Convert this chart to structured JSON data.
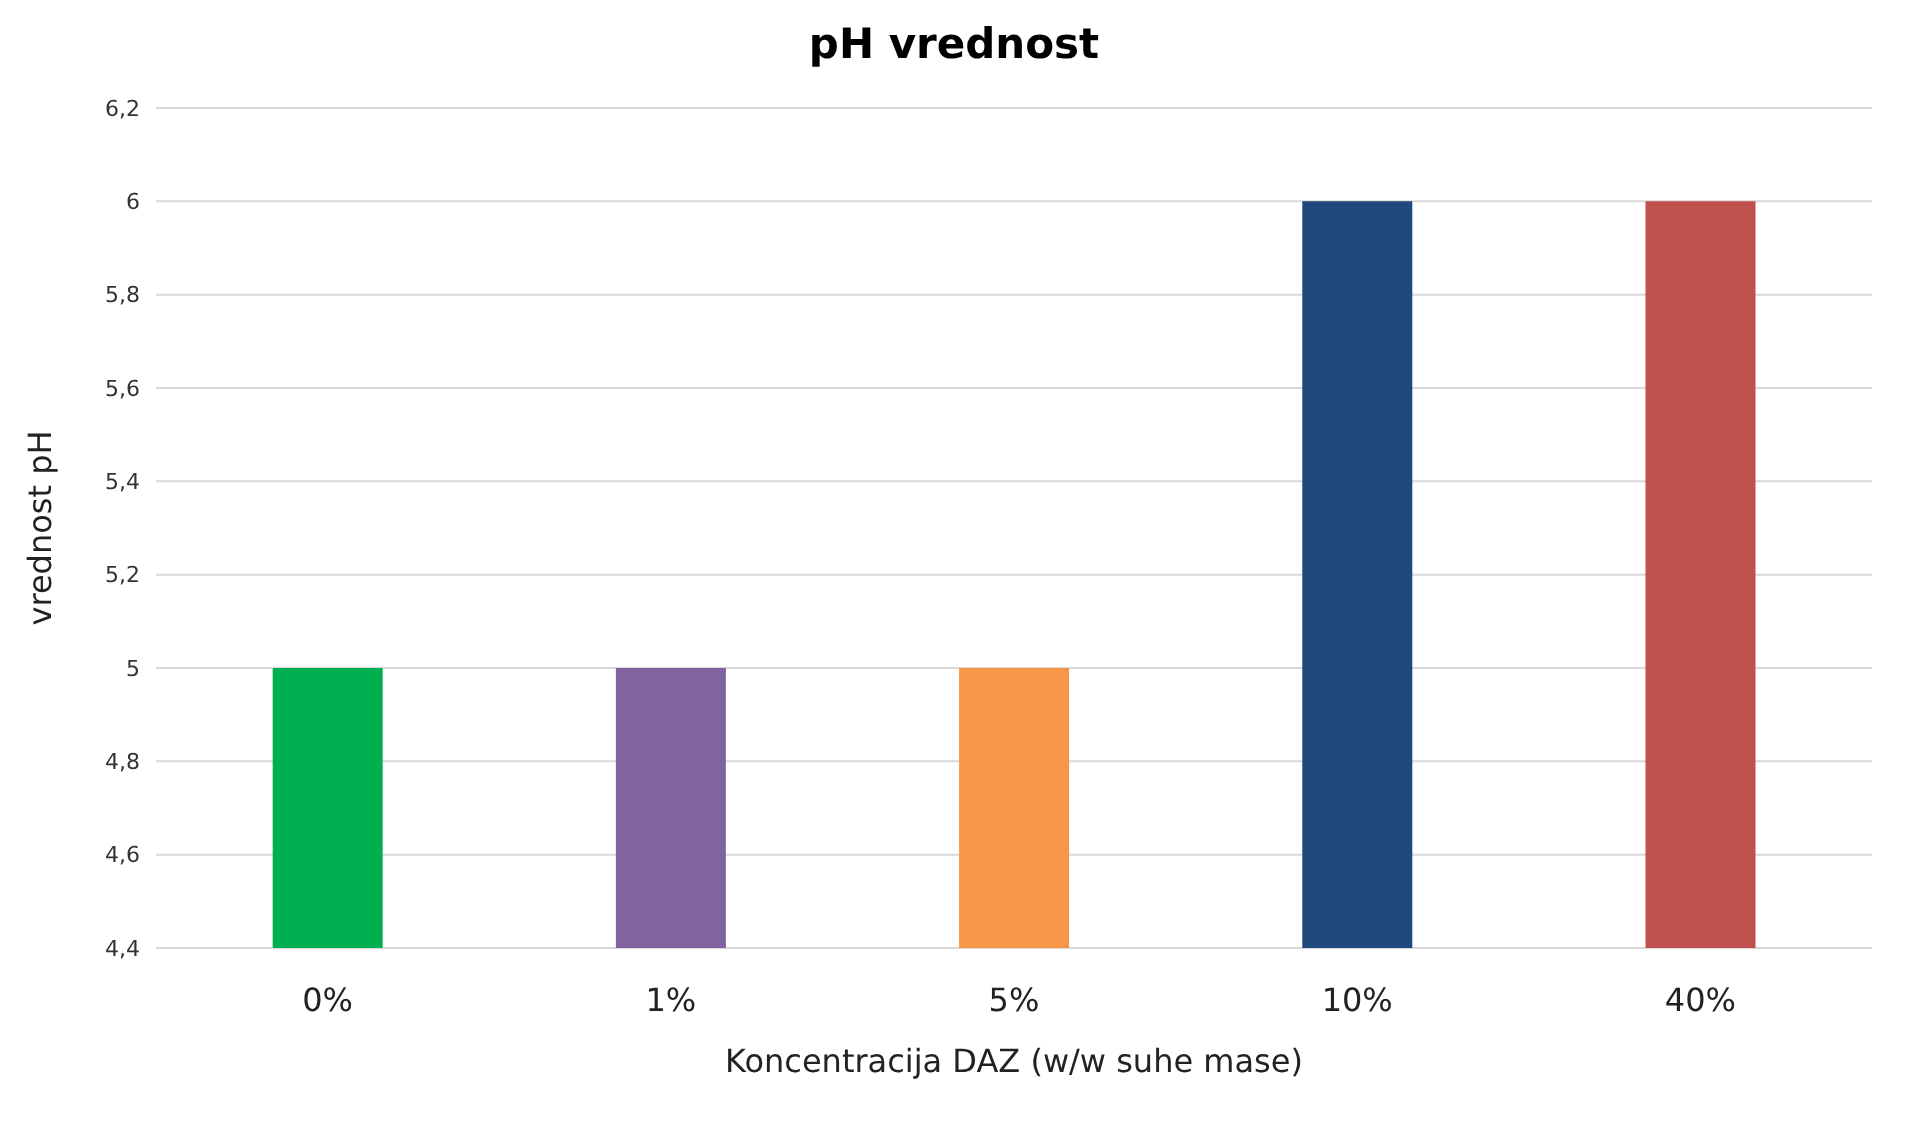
{
  "chart_data": {
    "type": "bar",
    "title": "pH vrednost",
    "xlabel": "Koncentracija DAZ (w/w suhe mase)",
    "ylabel": "vrednost pH",
    "categories": [
      "0%",
      "1%",
      "5%",
      "10%",
      "40%"
    ],
    "values": [
      5,
      5,
      5,
      6,
      6
    ],
    "colors": [
      "#00b050",
      "#8064a2",
      "#f79646",
      "#1f497d",
      "#c0504d"
    ],
    "ylim": [
      4.4,
      6.2
    ],
    "yticks": [
      {
        "value": 4.4,
        "label": "4,4"
      },
      {
        "value": 4.6,
        "label": "4,6"
      },
      {
        "value": 4.8,
        "label": "4,8"
      },
      5,
      {
        "value": 5.2,
        "label": "5,2"
      },
      {
        "value": 5.4,
        "label": "5,4"
      },
      {
        "value": 5.6,
        "label": "5,6"
      },
      {
        "value": 5.8,
        "label": "5,8"
      },
      6,
      {
        "value": 6.2,
        "label": "6,2"
      }
    ],
    "grid": "y"
  }
}
